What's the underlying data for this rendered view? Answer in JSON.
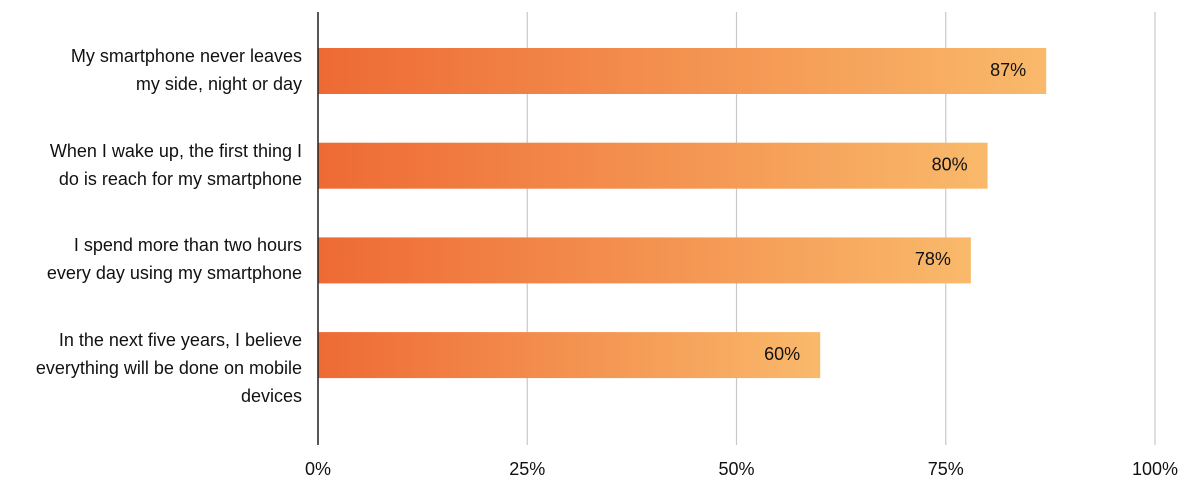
{
  "chart_data": {
    "type": "bar",
    "orientation": "horizontal",
    "categories": [
      "My smartphone never leaves\nmy side, night or day",
      "When I wake up, the first thing I\ndo is reach for my smartphone",
      "I spend more than two hours\nevery day using my smartphone",
      "In the next  five years, I believe\neverything will be done on mobile\ndevices"
    ],
    "values": [
      87,
      80,
      78,
      60
    ],
    "value_labels": [
      "87%",
      "80%",
      "78%",
      "60%"
    ],
    "color": [
      "#ee6a35",
      "#f9b96b"
    ],
    "xlim": [
      0,
      100
    ],
    "xticks": [
      {
        "value": 0,
        "label": "0%"
      },
      {
        "value": 25,
        "label": "25%"
      },
      {
        "value": 50,
        "label": "50%"
      },
      {
        "value": 75,
        "label": "75%"
      },
      {
        "value": 100,
        "label": "100%"
      }
    ],
    "grid": true
  }
}
